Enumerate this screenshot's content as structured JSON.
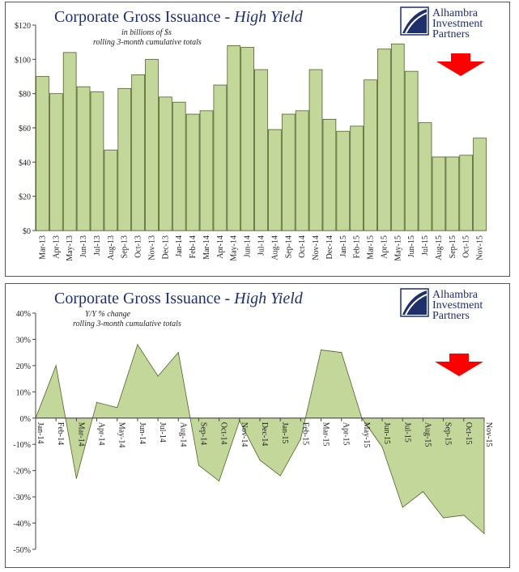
{
  "charts": [
    {
      "title_main": "Corporate Gross Issuance - ",
      "title_italic": "High Yield",
      "subtitle_1": "in billions of $s",
      "subtitle_2": "rolling 3-month cumulative totals",
      "logo_lines": [
        "Alhambra",
        "Investment",
        "Partners"
      ]
    },
    {
      "title_main": "Corporate Gross Issuance - ",
      "title_italic": "High Yield",
      "subtitle_1": "Y/Y % change",
      "subtitle_2": "rolling 3-month cumulative totals",
      "logo_lines": [
        "Alhambra",
        "Investment",
        "Partners"
      ]
    }
  ],
  "colors": {
    "fill": "#c3d79b",
    "stroke": "#4f6228",
    "arrow": "#ff0000",
    "title": "#1f2f6b"
  },
  "chart_data": [
    {
      "type": "bar",
      "ylim": [
        0,
        120
      ],
      "yticks": [
        "$0",
        "$20",
        "$40",
        "$60",
        "$80",
        "$100",
        "$120"
      ],
      "categories": [
        "Mar-13",
        "Apr-13",
        "May-13",
        "Jun-13",
        "Jul-13",
        "Aug-13",
        "Sep-13",
        "Oct-13",
        "Nov-13",
        "Dec-13",
        "Jan-14",
        "Feb-14",
        "Mar-14",
        "Apr-14",
        "May-14",
        "Jun-14",
        "Jul-14",
        "Aug-14",
        "Sep-14",
        "Oct-14",
        "Nov-14",
        "Dec-14",
        "Jan-15",
        "Feb-15",
        "Mar-15",
        "Apr-15",
        "May-15",
        "Jun-15",
        "Jul-15",
        "Aug-15",
        "Sep-15",
        "Oct-15",
        "Nov-15"
      ],
      "values": [
        90,
        80,
        104,
        84,
        81,
        47,
        83,
        91,
        100,
        78,
        75,
        68,
        70,
        85,
        108,
        107,
        94,
        59,
        68,
        70,
        94,
        65,
        58,
        61,
        88,
        106,
        109,
        93,
        63,
        43,
        43,
        44,
        54
      ],
      "label_every": 1
    },
    {
      "type": "area",
      "ylim": [
        -50,
        40
      ],
      "yticks": [
        "-50%",
        "-40%",
        "-30%",
        "-20%",
        "-10%",
        "0%",
        "10%",
        "20%",
        "30%",
        "40%"
      ],
      "categories": [
        "Jan-14",
        "Feb-14",
        "Mar-14",
        "Apr-14",
        "May-14",
        "Jun-14",
        "Jul-14",
        "Aug-14",
        "Sep-14",
        "Oct-14",
        "Nov-14",
        "Dec-14",
        "Jan-15",
        "Feb-15",
        "Mar-15",
        "Apr-15",
        "May-15",
        "Jun-15",
        "Jul-15",
        "Aug-15",
        "Sep-15",
        "Oct-15",
        "Nov-15"
      ],
      "values": [
        0,
        20,
        -23,
        6,
        4,
        28,
        16,
        25,
        -18,
        -24,
        -1,
        -16,
        -22,
        -8,
        26,
        25,
        0,
        -11,
        -34,
        -28,
        -38,
        -37,
        -44
      ]
    }
  ]
}
